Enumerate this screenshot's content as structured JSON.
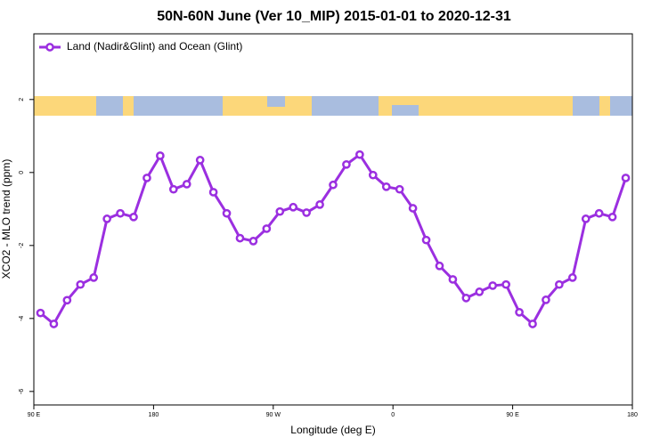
{
  "chart_data": {
    "type": "line",
    "title": "50N-60N June (Ver 10_MIP)   2015-01-01 to 2020-12-31",
    "x_label": "Longitude (deg E)",
    "y_label": "XCO2 - MLO trend (ppm)",
    "legend_position": "top-left",
    "xlim": [
      90,
      540
    ],
    "ylim": [
      -6.37,
      3.8
    ],
    "xticks": [
      {
        "value": 90,
        "label": "90 E"
      },
      180,
      {
        "value": 270,
        "label": "90 W"
      },
      {
        "value": 360,
        "label": "0"
      },
      {
        "value": 450,
        "label": "90 E"
      },
      {
        "value": 540,
        "label": "180"
      }
    ],
    "yticks": [
      2,
      0,
      -2,
      -4,
      -6
    ],
    "x": [
      95,
      105,
      115,
      125,
      135,
      145,
      155,
      165,
      175,
      185,
      195,
      205,
      215,
      225,
      235,
      245,
      255,
      265,
      275,
      285,
      295,
      305,
      315,
      325,
      335,
      345,
      355,
      365,
      375,
      385,
      395,
      405,
      415,
      425,
      435,
      445,
      455,
      465,
      475,
      485,
      495,
      505,
      515,
      525,
      535
    ],
    "series": [
      {
        "name": "Land (Nadir&Glint) and Ocean (Glint)",
        "color": "#9b2fe0",
        "values": [
          -3.85,
          -4.15,
          -3.5,
          -3.07,
          -2.88,
          -1.27,
          -1.12,
          -1.22,
          -0.15,
          0.46,
          -0.46,
          -0.32,
          0.34,
          -0.54,
          -1.12,
          -1.8,
          -1.88,
          -1.54,
          -1.07,
          -0.95,
          -1.1,
          -0.88,
          -0.34,
          0.22,
          0.49,
          -0.07,
          -0.39,
          -0.46,
          -0.98,
          -1.85,
          -2.56,
          -2.93,
          -3.44,
          -3.27,
          -3.1,
          -3.07,
          -3.83,
          -4.15,
          -3.49,
          -3.07,
          -2.88,
          -1.27,
          -1.12,
          -1.22,
          -0.15
        ]
      }
    ]
  }
}
